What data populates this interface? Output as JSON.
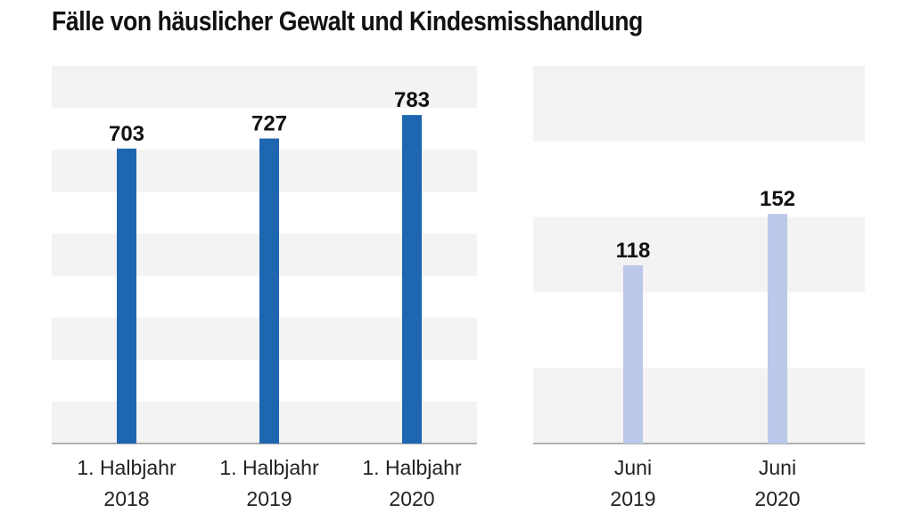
{
  "title": "Fälle von häuslicher Gewalt und Kindesmisshandlung",
  "chart_data": [
    {
      "type": "bar",
      "categories": [
        [
          "1. Halbjahr",
          "2018"
        ],
        [
          "1. Halbjahr",
          "2019"
        ],
        [
          "1. Halbjahr",
          "2020"
        ]
      ],
      "values": [
        703,
        727,
        783
      ],
      "data_labels": [
        "703",
        "727",
        "783"
      ],
      "ylim": [
        0,
        900
      ],
      "grid": "alternating bands",
      "colors": {
        "bar": "#1f66b1",
        "band": "#f3f3f3",
        "axis": "#999999"
      }
    },
    {
      "type": "bar",
      "categories": [
        [
          "Juni",
          "2019"
        ],
        [
          "Juni",
          "2020"
        ]
      ],
      "values": [
        118,
        152
      ],
      "data_labels": [
        "118",
        "152"
      ],
      "ylim": [
        0,
        250
      ],
      "grid": "alternating bands",
      "colors": {
        "bar": "#bcc8e9",
        "band": "#f3f3f3",
        "axis": "#999999"
      }
    }
  ]
}
